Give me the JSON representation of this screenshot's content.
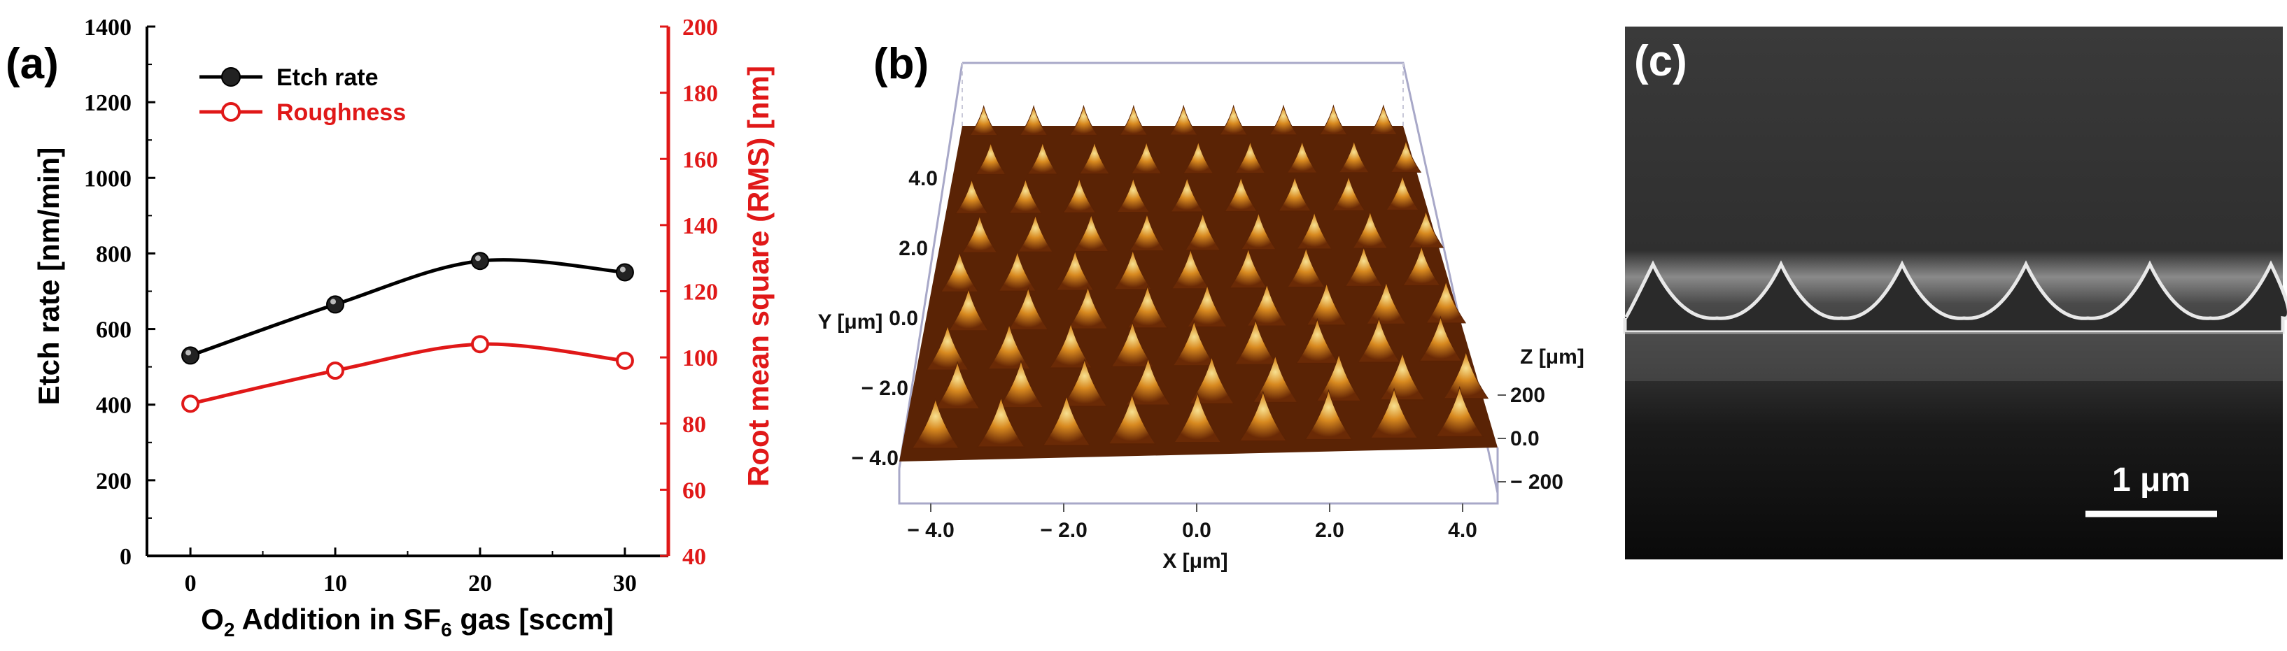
{
  "panels": {
    "a": {
      "label": "(a)"
    },
    "b": {
      "label": "(b)"
    },
    "c": {
      "label": "(c)"
    }
  },
  "chart_data": [
    {
      "type": "line",
      "panel": "(a)",
      "x": [
        0,
        10,
        20,
        30
      ],
      "x_ticks": [
        0,
        10,
        20,
        30
      ],
      "xlabel_parts": [
        "O",
        "2",
        " Addition in SF",
        "6",
        " gas [sccm]"
      ],
      "series": [
        {
          "name": "Etch rate",
          "axis": "left",
          "color": "#000000",
          "marker": "filled-circle",
          "values": [
            530,
            665,
            780,
            750
          ]
        },
        {
          "name": "Roughness",
          "axis": "right",
          "color": "#e01818",
          "marker": "open-circle",
          "values": [
            86,
            96,
            104,
            99
          ]
        }
      ],
      "y_left": {
        "label": "Etch rate [nm/min]",
        "lim": [
          0,
          1400
        ],
        "ticks": [
          0,
          200,
          400,
          600,
          800,
          1000,
          1200,
          1400
        ],
        "color": "#000000"
      },
      "y_right": {
        "label": "Root mean square (RMS) [nm]",
        "lim": [
          40,
          200
        ],
        "ticks": [
          40,
          60,
          80,
          100,
          120,
          140,
          160,
          180,
          200
        ],
        "color": "#e01818"
      },
      "legend_position": "top-left",
      "grid": false
    }
  ],
  "afm": {
    "x_ticks": [
      "− 4.0",
      "− 2.0",
      "0.0",
      "2.0",
      "4.0"
    ],
    "y_ticks": [
      "4.0",
      "2.0",
      "0.0",
      "− 2.0",
      "− 4.0"
    ],
    "z_ticks": [
      "200",
      "0.0",
      "− 200"
    ],
    "x_label": "X [μm]",
    "y_label": "Y [μm]",
    "z_label": "Z [μm]",
    "colors": {
      "peak": "#f2d060",
      "mid": "#c46a10",
      "base": "#5a2305"
    }
  },
  "sem": {
    "scale_label": "1 μm",
    "colors": {
      "background": "#1c1c1c",
      "edge": "#e8e8e8"
    }
  }
}
